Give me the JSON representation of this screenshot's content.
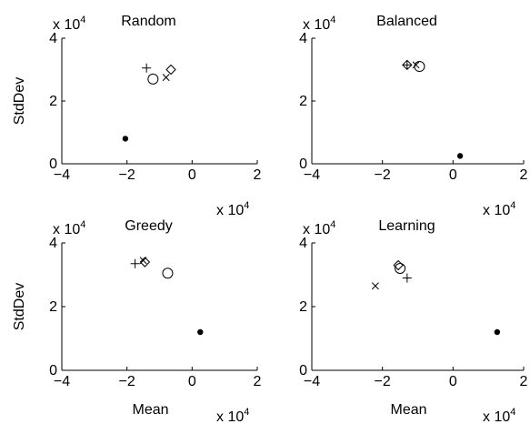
{
  "chart_data": [
    {
      "type": "scatter",
      "title": "Random",
      "xlabel": "",
      "ylabel": "StdDev",
      "xlim": [
        -4,
        2
      ],
      "ylim": [
        0,
        4
      ],
      "x_ticks": [
        "−4",
        "−2",
        "0",
        "2"
      ],
      "y_ticks": [
        "0",
        "2",
        "4"
      ],
      "x_multiplier": "x 10",
      "x_multiplier_exp": "4",
      "y_multiplier": "x 10",
      "y_multiplier_exp": "4",
      "points": [
        {
          "marker": "plus",
          "x": -1.4,
          "y": 3.05
        },
        {
          "marker": "circle",
          "x": -1.2,
          "y": 2.7
        },
        {
          "marker": "cross",
          "x": -0.8,
          "y": 2.75
        },
        {
          "marker": "diamond",
          "x": -0.65,
          "y": 3.0
        },
        {
          "marker": "dot",
          "x": -2.05,
          "y": 0.8
        }
      ]
    },
    {
      "type": "scatter",
      "title": "Balanced",
      "xlabel": "",
      "ylabel": "",
      "xlim": [
        -4,
        2
      ],
      "ylim": [
        0,
        4
      ],
      "x_ticks": [
        "−4",
        "−2",
        "0",
        "2"
      ],
      "y_ticks": [
        "0",
        "2",
        "4"
      ],
      "x_multiplier": "x 10",
      "x_multiplier_exp": "4",
      "y_multiplier": "x 10",
      "y_multiplier_exp": "4",
      "points": [
        {
          "marker": "plus",
          "x": -1.3,
          "y": 3.15
        },
        {
          "marker": "diamond",
          "x": -1.3,
          "y": 3.15
        },
        {
          "marker": "cross",
          "x": -1.05,
          "y": 3.15
        },
        {
          "marker": "circle",
          "x": -0.95,
          "y": 3.1
        },
        {
          "marker": "dot",
          "x": 0.2,
          "y": 0.25
        }
      ]
    },
    {
      "type": "scatter",
      "title": "Greedy",
      "xlabel": "Mean",
      "ylabel": "StdDev",
      "xlim": [
        -4,
        2
      ],
      "ylim": [
        0,
        4
      ],
      "x_ticks": [
        "−4",
        "−2",
        "0",
        "2"
      ],
      "y_ticks": [
        "0",
        "2",
        "4"
      ],
      "x_multiplier": "x 10",
      "x_multiplier_exp": "4",
      "y_multiplier": "x 10",
      "y_multiplier_exp": "4",
      "points": [
        {
          "marker": "plus",
          "x": -1.75,
          "y": 3.35
        },
        {
          "marker": "cross",
          "x": -1.5,
          "y": 3.45
        },
        {
          "marker": "diamond",
          "x": -1.45,
          "y": 3.4
        },
        {
          "marker": "circle",
          "x": -0.75,
          "y": 3.05
        },
        {
          "marker": "dot",
          "x": 0.25,
          "y": 1.2
        }
      ]
    },
    {
      "type": "scatter",
      "title": "Learning",
      "xlabel": "Mean",
      "ylabel": "",
      "xlim": [
        -4,
        2
      ],
      "ylim": [
        0,
        4
      ],
      "x_ticks": [
        "−4",
        "−2",
        "0",
        "2"
      ],
      "y_ticks": [
        "0",
        "2",
        "4"
      ],
      "x_multiplier": "x 10",
      "x_multiplier_exp": "4",
      "y_multiplier": "x 10",
      "y_multiplier_exp": "4",
      "points": [
        {
          "marker": "cross",
          "x": -2.2,
          "y": 2.65
        },
        {
          "marker": "diamond",
          "x": -1.55,
          "y": 3.3
        },
        {
          "marker": "circle",
          "x": -1.5,
          "y": 3.2
        },
        {
          "marker": "plus",
          "x": -1.3,
          "y": 2.9
        },
        {
          "marker": "dot",
          "x": 1.25,
          "y": 1.2
        }
      ]
    }
  ]
}
